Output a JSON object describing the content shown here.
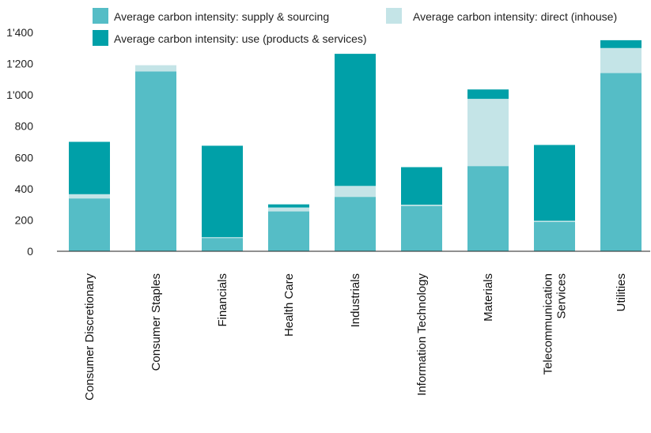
{
  "chart_data": {
    "type": "bar",
    "stacked": true,
    "categories": [
      [
        "Consumer Discretionary"
      ],
      [
        "Consumer Staples"
      ],
      [
        "Financials"
      ],
      [
        "Health Care"
      ],
      [
        "Industrials"
      ],
      [
        "Information Technology"
      ],
      [
        "Materials"
      ],
      [
        "Telecommunication",
        "Services"
      ],
      [
        "Utilities"
      ]
    ],
    "series": [
      {
        "name": "Average carbon intensity: supply & sourcing",
        "color": "#55bdc6",
        "values": [
          338,
          1150,
          85,
          255,
          348,
          290,
          545,
          188,
          1140
        ]
      },
      {
        "name": "Average carbon intensity: direct (inhouse)",
        "color": "#c4e4e7",
        "values": [
          27,
          40,
          5,
          25,
          70,
          8,
          430,
          7,
          160
        ]
      },
      {
        "name": "Average carbon intensity: use (products & services)",
        "color": "#00a0a8",
        "values": [
          335,
          0,
          585,
          20,
          845,
          240,
          60,
          485,
          50
        ]
      }
    ],
    "yticks": [
      "0",
      "200",
      "400",
      "600",
      "800",
      "1'000",
      "1'200",
      "1'400"
    ],
    "ylim": [
      0,
      1400
    ],
    "legend_position": "top"
  }
}
